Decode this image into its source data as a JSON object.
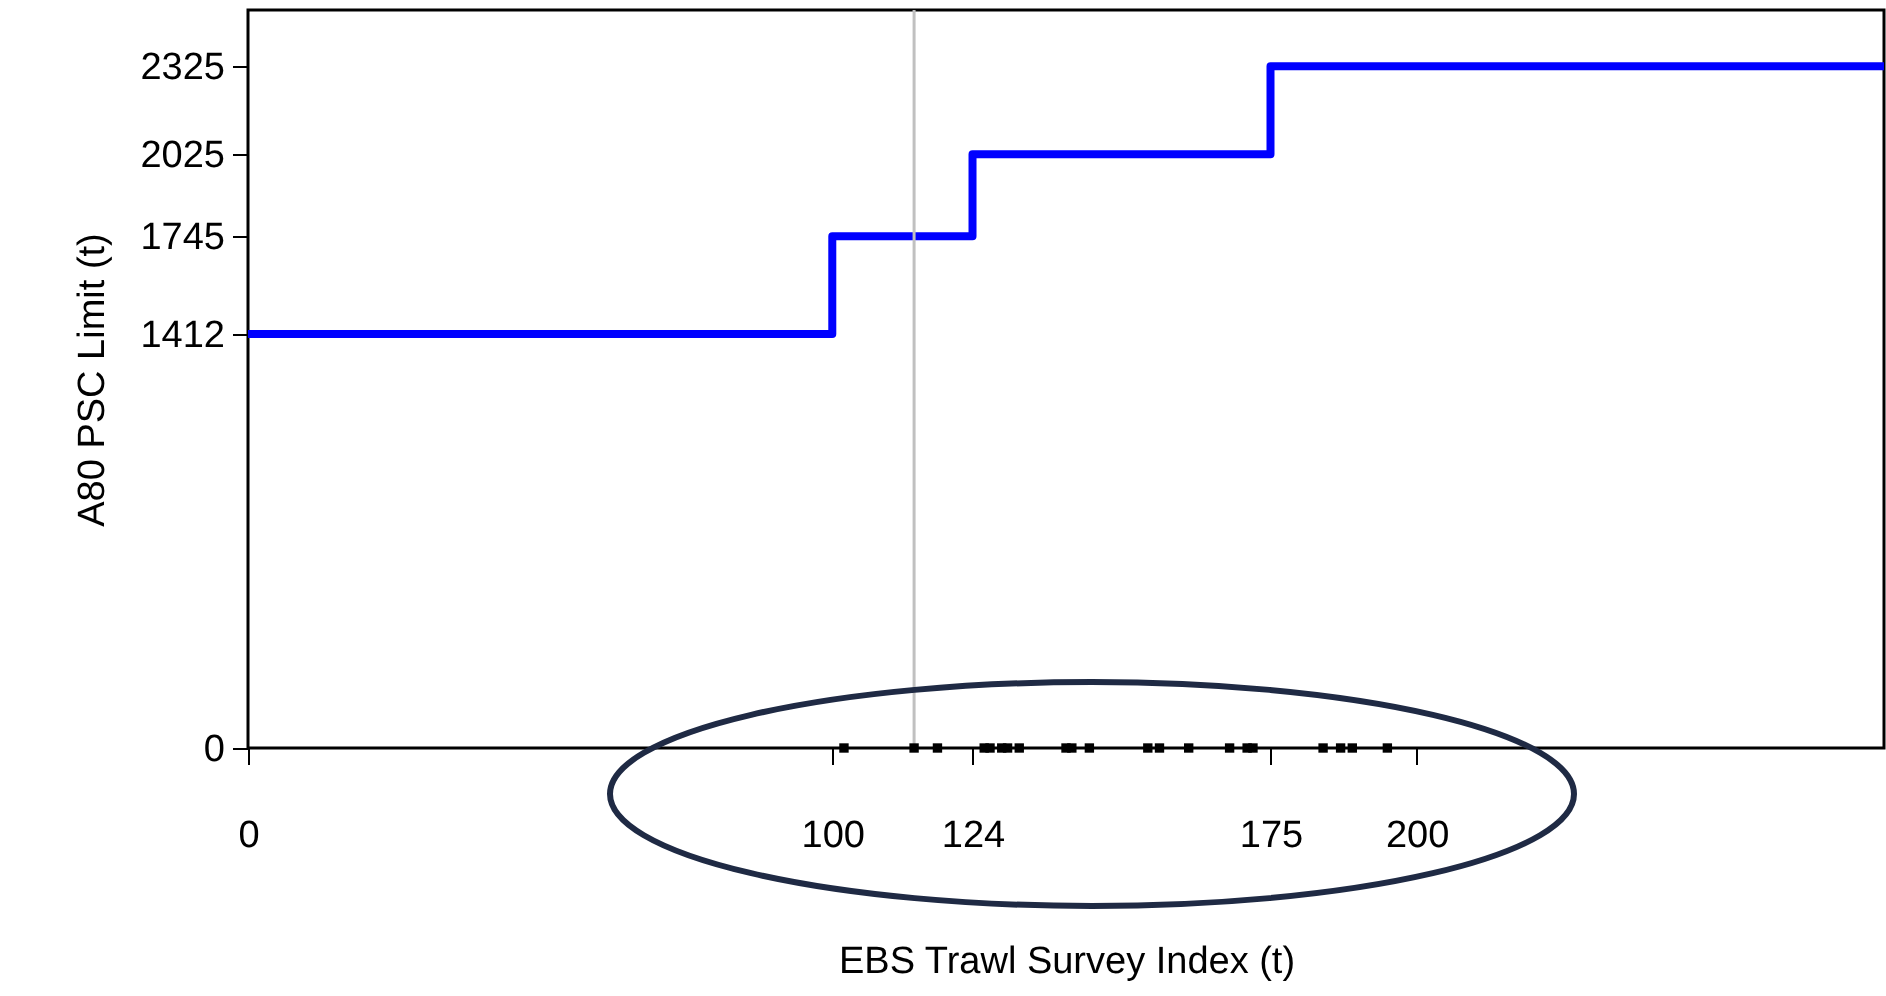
{
  "chart_data": {
    "type": "step",
    "xlabel": "EBS Trawl Survey Index (t)",
    "ylabel": "A80 PSC Limit (t)",
    "xlim": [
      0,
      280
    ],
    "ylim": [
      0,
      2517
    ],
    "xticks": [
      0,
      100,
      124,
      175,
      200
    ],
    "yticks": [
      0,
      1412,
      1745,
      2025,
      2325
    ],
    "grid": false,
    "series": [
      {
        "color": "#0000ff",
        "x": [
          0,
          100,
          124,
          175,
          280
        ],
        "values": [
          1412,
          1745,
          2025,
          2325,
          2325
        ]
      },
      {
        "type": "scatter",
        "marker": "square",
        "color": "#000000",
        "x": [
          102,
          114,
          118,
          126,
          127,
          129,
          130,
          132,
          140,
          141,
          144,
          154,
          156,
          161,
          168,
          171,
          172,
          184,
          187,
          189,
          195
        ],
        "values": [
          0,
          0,
          0,
          0,
          0,
          0,
          0,
          0,
          0,
          0,
          0,
          0,
          0,
          0,
          0,
          0,
          0,
          0,
          0,
          0,
          0
        ]
      }
    ],
    "ref_lines": [
      {
        "axis": "x",
        "value": 114,
        "color": "#c0c0c0"
      }
    ]
  }
}
